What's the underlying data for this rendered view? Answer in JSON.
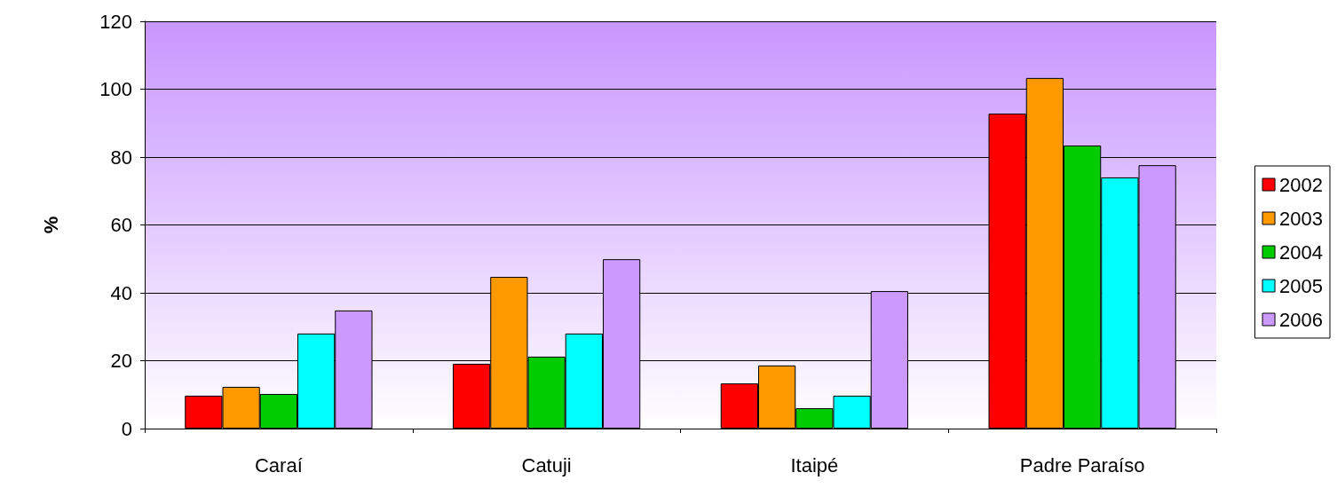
{
  "chart_data": {
    "type": "bar",
    "ylabel": "%",
    "categories": [
      "Caraí",
      "Catuji",
      "Itaipé",
      "Padre Paraíso"
    ],
    "series": [
      {
        "name": "2002",
        "color": "#ff0000",
        "values": [
          9.7,
          19.1,
          13.3,
          92.8
        ]
      },
      {
        "name": "2003",
        "color": "#ff9900",
        "values": [
          12.3,
          44.7,
          18.6,
          103.3
        ]
      },
      {
        "name": "2004",
        "color": "#00cc00",
        "values": [
          10.2,
          21.2,
          6,
          83.4
        ]
      },
      {
        "name": "2005",
        "color": "#00ffff",
        "values": [
          28,
          28,
          9.7,
          74
        ]
      },
      {
        "name": "2006",
        "color": "#cc99ff",
        "values": [
          34.8,
          49.9,
          40.5,
          77.6
        ]
      }
    ],
    "ylim": [
      0,
      120
    ],
    "yticks": [
      0,
      20,
      40,
      60,
      80,
      100,
      120
    ],
    "grid": "y",
    "legend": "right"
  }
}
